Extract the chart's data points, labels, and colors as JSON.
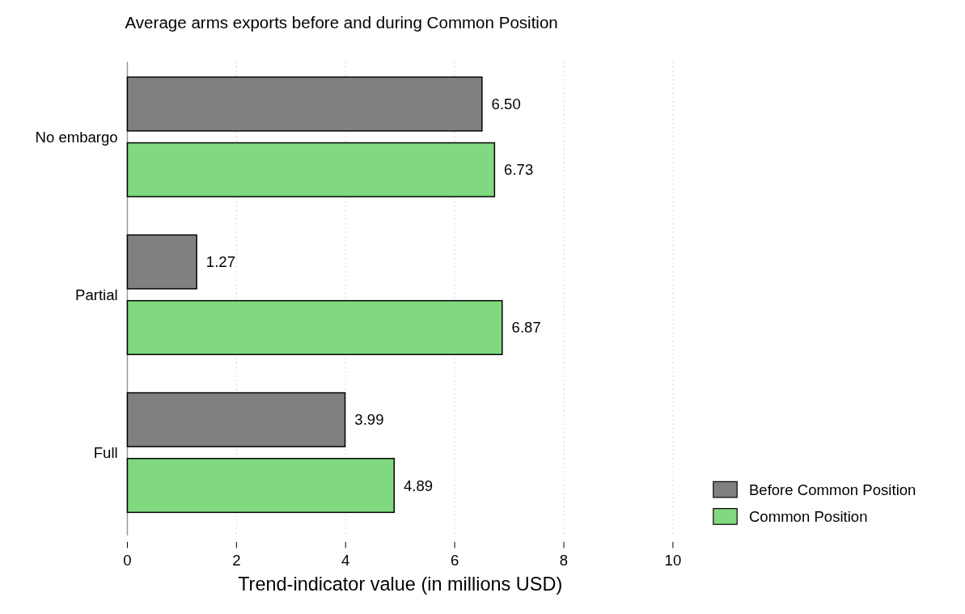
{
  "chart_data": {
    "type": "bar",
    "orientation": "horizontal",
    "title": "Average arms exports before and during Common Position",
    "xlabel": "Trend-indicator value (in millions USD)",
    "categories": [
      "No embargo",
      "Partial",
      "Full"
    ],
    "series": [
      {
        "name": "Before Common Position",
        "color": "#808080",
        "values": [
          6.5,
          1.27,
          3.99
        ],
        "value_labels": [
          "6.50",
          "1.27",
          "3.99"
        ]
      },
      {
        "name": "Common Position",
        "color": "#80d880",
        "values": [
          6.73,
          6.87,
          4.89
        ],
        "value_labels": [
          "6.73",
          "6.87",
          "4.89"
        ]
      }
    ],
    "xlim": [
      0,
      10
    ],
    "xticks": [
      0,
      2,
      4,
      6,
      8,
      10
    ],
    "grid": "x",
    "legend": "right"
  }
}
